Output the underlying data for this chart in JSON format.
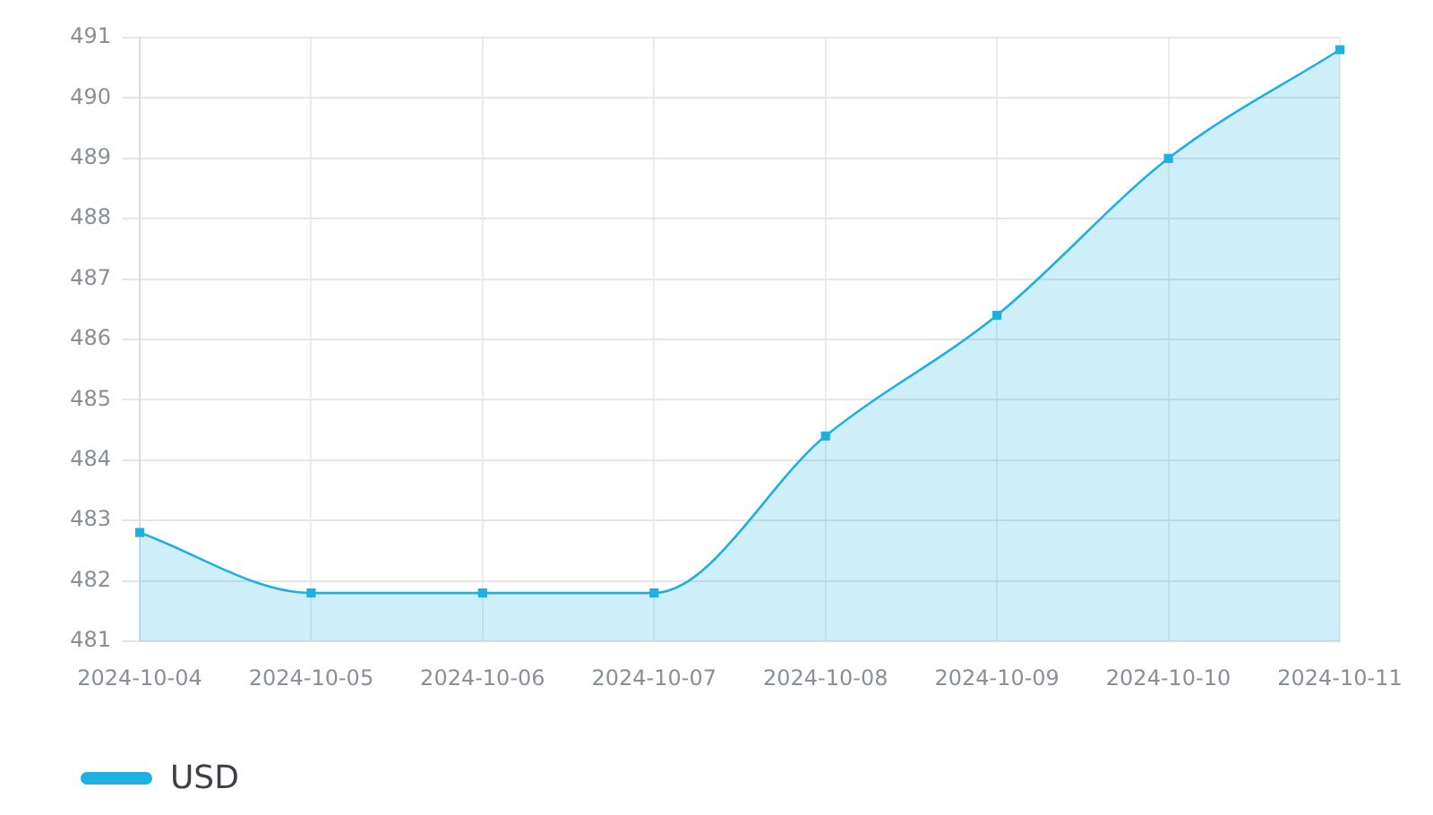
{
  "chart_data": {
    "type": "area",
    "categories": [
      "2024-10-04",
      "2024-10-05",
      "2024-10-06",
      "2024-10-07",
      "2024-10-08",
      "2024-10-09",
      "2024-10-10",
      "2024-10-11"
    ],
    "series": [
      {
        "name": "USD",
        "color": "#1fb0e2",
        "values": [
          482.8,
          481.8,
          481.8,
          481.8,
          484.4,
          486.4,
          489.0,
          490.8
        ]
      }
    ],
    "ylim": [
      481,
      491
    ],
    "yticks": [
      481,
      482,
      483,
      484,
      485,
      486,
      487,
      488,
      489,
      490,
      491
    ],
    "grid": true,
    "legend": "bottom left",
    "marker": "square"
  }
}
